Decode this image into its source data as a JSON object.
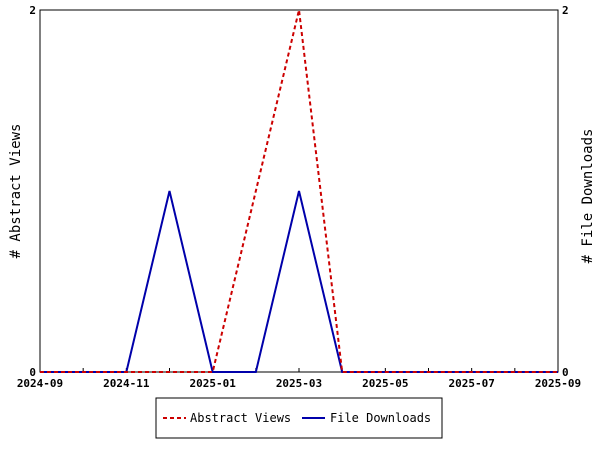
{
  "chart_data": {
    "type": "line",
    "x": [
      "2024-09",
      "2024-10",
      "2024-11",
      "2024-12",
      "2025-01",
      "2025-02",
      "2025-03",
      "2025-04",
      "2025-05",
      "2025-06",
      "2025-07",
      "2025-08",
      "2025-09"
    ],
    "series": [
      {
        "name": "Abstract Views",
        "axis": "left",
        "color": "#cc0000",
        "dashed": true,
        "values": [
          0,
          0,
          0,
          0,
          0,
          1,
          2,
          0,
          0,
          0,
          0,
          0,
          0
        ]
      },
      {
        "name": "File Downloads",
        "axis": "right",
        "color": "#0000aa",
        "dashed": false,
        "values": [
          0,
          0,
          0,
          1,
          0,
          0,
          1,
          0,
          0,
          0,
          0,
          0,
          0
        ]
      }
    ],
    "xticks": [
      "2024-09",
      "2024-11",
      "2025-01",
      "2025-03",
      "2025-05",
      "2025-07",
      "2025-09"
    ],
    "ylabel_left": "# Abstract Views",
    "ylabel_right": "# File Downloads",
    "yticks_left": [
      "0",
      "2"
    ],
    "yticks_right": [
      "0",
      "2"
    ],
    "ylim": [
      0,
      2
    ],
    "grid": false,
    "legend_position": "bottom-center"
  }
}
